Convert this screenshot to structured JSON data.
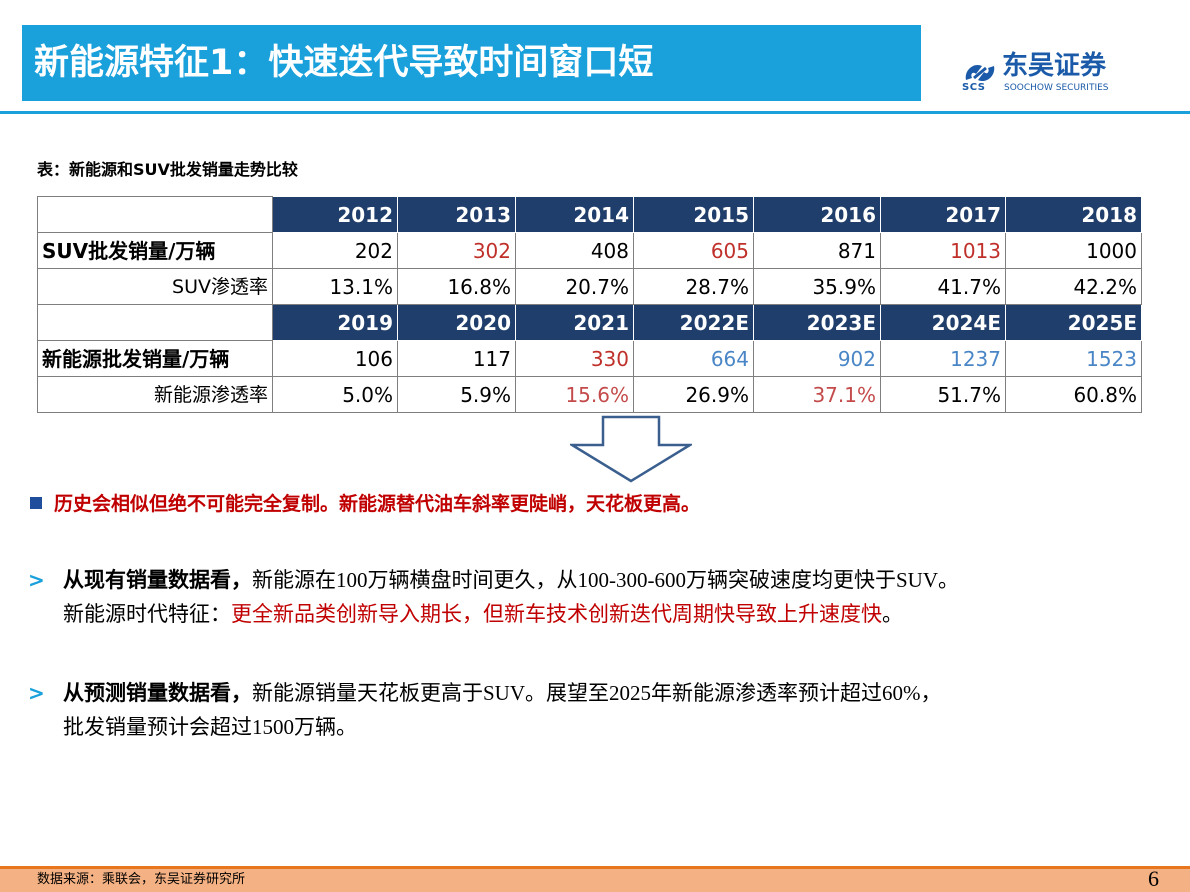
{
  "header": {
    "title": "新能源特征1：快速迭代导致时间窗口短",
    "logo_cn": "东吴证券",
    "logo_abbr": "SCS",
    "logo_en": "SOOCHOW SECURITIES",
    "logo_icon": "soochow-logo-icon"
  },
  "table": {
    "caption": "表：新能源和SUV批发销量走势比较",
    "suv": {
      "years": [
        "2012",
        "2013",
        "2014",
        "2015",
        "2016",
        "2017",
        "2018"
      ],
      "sales_label": "SUV批发销量/万辆",
      "sales": [
        "202",
        "302",
        "408",
        "605",
        "871",
        "1013",
        "1000"
      ],
      "penetration_label": "SUV渗透率",
      "penetration": [
        "13.1%",
        "16.8%",
        "20.7%",
        "28.7%",
        "35.9%",
        "41.7%",
        "42.2%"
      ]
    },
    "nev": {
      "years": [
        "2019",
        "2020",
        "2021",
        "2022E",
        "2023E",
        "2024E",
        "2025E"
      ],
      "sales_label": "新能源批发销量/万辆",
      "sales": [
        "106",
        "117",
        "330",
        "664",
        "902",
        "1237",
        "1523"
      ],
      "penetration_label": "新能源渗透率",
      "penetration": [
        "5.0%",
        "5.9%",
        "15.6%",
        "26.9%",
        "37.1%",
        "51.7%",
        "60.8%"
      ]
    },
    "colors": {
      "header_bg": "#1f3e6b",
      "highlight_red": "#c0302b",
      "forecast_blue": "#4a86c6"
    }
  },
  "arrow_icon": "down-arrow-icon",
  "summary": "历史会相似但绝不可能完全复制。新能源替代油车斜率更陡峭，天花板更高。",
  "points": [
    {
      "lead": "从现有销量数据看，",
      "l1_a": "新能源在",
      "l1_b": "100",
      "l1_c": "万辆横盘时间更久，从",
      "l1_d": "100-300-600",
      "l1_e": "万辆突破速度均更快于",
      "l1_f": "SUV",
      "l1_g": "。",
      "l2_a": "新能源时代特征：",
      "l2_red": "更全新品类创新导入期长，但新车技术创新迭代周期快导致上升速度快",
      "l2_end": "。"
    },
    {
      "lead": "从预测销量数据看，",
      "l1_a": "新能源销量天花板更高于",
      "l1_b": "SUV",
      "l1_c": "。展望至",
      "l1_d": "2025",
      "l1_e": "年新能源渗透率预计超过",
      "l1_f": "60%",
      "l1_g": "，",
      "l2_a": "批发销量预计会超过",
      "l2_b": "1500",
      "l2_end": "万辆。"
    }
  ],
  "footer": {
    "source": "数据来源：乘联会，东吴证券研究所",
    "page": "6"
  }
}
